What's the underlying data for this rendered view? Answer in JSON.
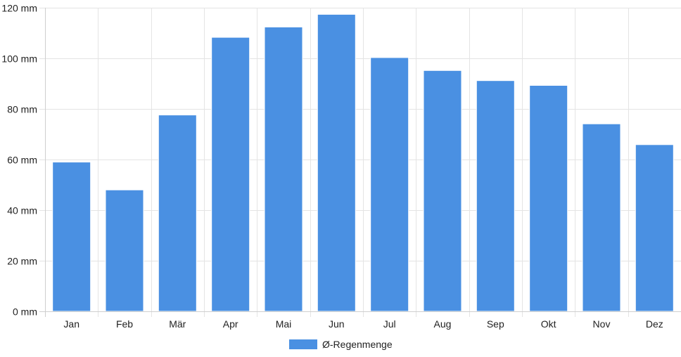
{
  "chart_data": {
    "type": "bar",
    "categories": [
      "Jan",
      "Feb",
      "Mär",
      "Apr",
      "Mai",
      "Jun",
      "Jul",
      "Aug",
      "Sep",
      "Okt",
      "Nov",
      "Dez"
    ],
    "series": [
      {
        "name": "Ø-Regenmenge",
        "color": "#4a90e2",
        "values": [
          59,
          48,
          77.6,
          108.3,
          112.4,
          117.4,
          100.3,
          95.2,
          91.2,
          89.3,
          74.1,
          65.9
        ]
      }
    ],
    "y_ticks": [
      "0 mm",
      "20 mm",
      "40 mm",
      "60 mm",
      "80 mm",
      "100 mm",
      "120 mm"
    ],
    "ylim": [
      0,
      120
    ],
    "y_unit": "mm",
    "grid": true,
    "legend": {
      "position": "bottom",
      "label": "Ø-Regenmenge"
    },
    "title": "",
    "xlabel": "",
    "ylabel": ""
  }
}
